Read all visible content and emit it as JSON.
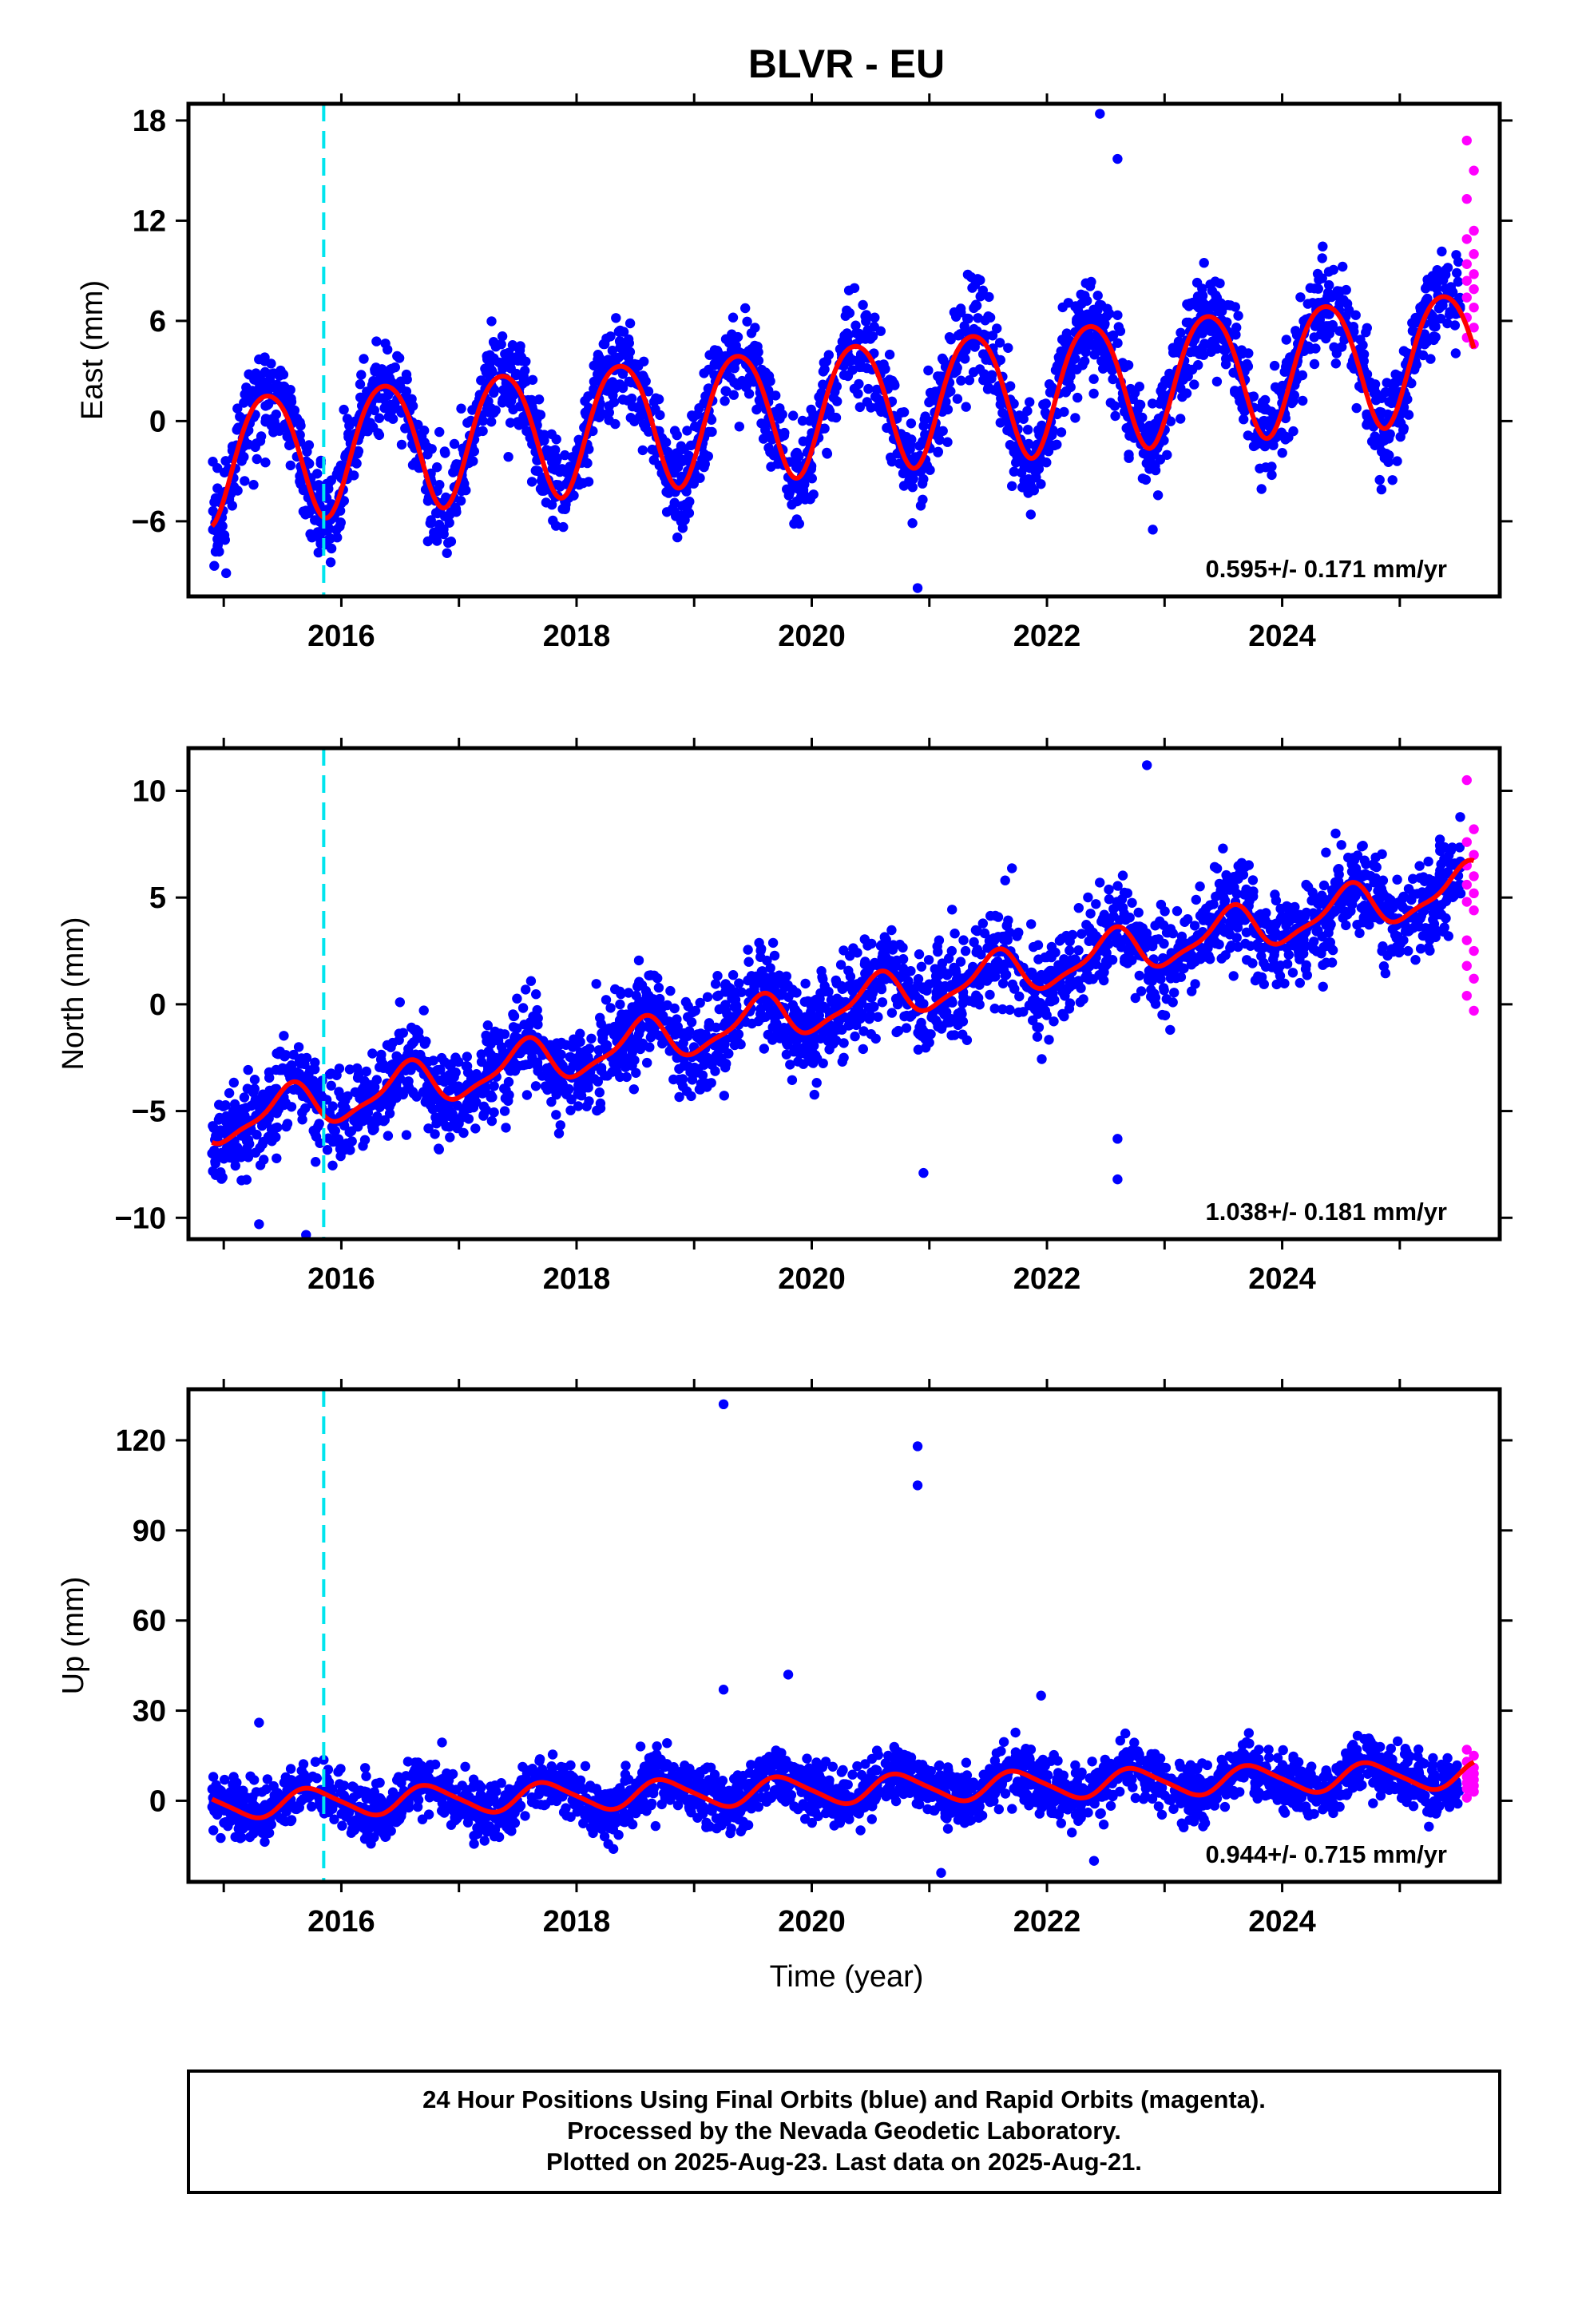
{
  "title": "BLVR - EU",
  "caption": {
    "line1": "24 Hour Positions Using Final Orbits (blue) and Rapid Orbits (magenta).",
    "line2": "Processed by the Nevada Geodetic Laboratory.",
    "line3": "Plotted on 2025-Aug-23. Last data on 2025-Aug-21."
  },
  "colors": {
    "final": "#0000ff",
    "rapid": "#ff00ff",
    "model": "#ff0000",
    "event": "#00e5ee"
  },
  "chart_data": [
    {
      "type": "scatter",
      "ylabel": "East (mm)",
      "xlabel": "",
      "xlim": [
        2014.7,
        2025.85
      ],
      "ylim": [
        -10.5,
        19
      ],
      "xticks": [
        "2016",
        "2018",
        "2020",
        "2022",
        "2024"
      ],
      "yticks": [
        "-6",
        "0",
        "6",
        "12",
        "18"
      ],
      "rate_label": "0.595+/- 0.171 mm/yr",
      "event_line_x": 2015.85,
      "model": {
        "offset": -2.3,
        "trend": 0.595,
        "annual_amp": 3.8,
        "annual_phase": 0.12,
        "semiannual_amp": 0.4
      },
      "series": [
        {
          "name": "Final Orbits",
          "color": "blue",
          "x_range": [
            2014.9,
            2025.52
          ],
          "scatter_sd": 1.4
        },
        {
          "name": "Rapid Orbits",
          "color": "magenta",
          "x_range": [
            2025.53,
            2025.63
          ],
          "y_values": [
            16.8,
            15.0,
            13.3,
            11.4,
            10.9,
            10.0,
            9.4,
            8.8,
            8.4,
            7.9,
            7.4,
            6.8,
            6.2,
            5.6,
            5.0,
            4.6
          ]
        }
      ],
      "outliers": [
        {
          "x": 2022.45,
          "y": 18.4
        },
        {
          "x": 2022.6,
          "y": 15.7
        },
        {
          "x": 2020.9,
          "y": -10.0
        },
        {
          "x": 2022.9,
          "y": -6.5
        }
      ]
    },
    {
      "type": "scatter",
      "ylabel": "North (mm)",
      "xlabel": "",
      "xlim": [
        2014.7,
        2025.85
      ],
      "ylim": [
        -11,
        12
      ],
      "xticks": [
        "2016",
        "2018",
        "2020",
        "2022",
        "2024"
      ],
      "yticks": [
        "-10",
        "-5",
        "0",
        "5",
        "10"
      ],
      "rate_label": "1.038+/- 0.181 mm/yr",
      "event_line_x": 2015.85,
      "model": {
        "offset": -5.8,
        "trend": 1.038,
        "annual_amp": 1.0,
        "annual_phase": 0.3,
        "semiannual_amp": 0.3
      },
      "series": [
        {
          "name": "Final Orbits",
          "color": "blue",
          "x_range": [
            2014.9,
            2025.52
          ],
          "scatter_sd": 1.1
        },
        {
          "name": "Rapid Orbits",
          "color": "magenta",
          "x_range": [
            2025.53,
            2025.63
          ],
          "y_values": [
            10.5,
            8.2,
            7.6,
            7.0,
            6.5,
            6.0,
            5.6,
            5.2,
            4.8,
            4.4,
            3.0,
            2.5,
            1.8,
            1.2,
            0.4,
            -0.3
          ]
        }
      ],
      "outliers": [
        {
          "x": 2022.85,
          "y": 11.2
        },
        {
          "x": 2020.95,
          "y": -7.9
        },
        {
          "x": 2022.6,
          "y": -6.3
        },
        {
          "x": 2022.6,
          "y": -8.2
        },
        {
          "x": 2015.3,
          "y": -10.3
        },
        {
          "x": 2015.7,
          "y": -10.8
        }
      ]
    },
    {
      "type": "scatter",
      "ylabel": "Up (mm)",
      "xlabel": "Time (year)",
      "xlim": [
        2014.7,
        2025.85
      ],
      "ylim": [
        -27,
        137
      ],
      "xticks": [
        "2016",
        "2018",
        "2020",
        "2022",
        "2024"
      ],
      "yticks": [
        "0",
        "30",
        "60",
        "90",
        "120"
      ],
      "rate_label": "0.944+/- 0.715 mm/yr",
      "event_line_x": 2015.85,
      "model": {
        "offset": -1.5,
        "trend": 0.944,
        "annual_amp": 4.5,
        "annual_phase": 0.5,
        "semiannual_amp": 0.8
      },
      "series": [
        {
          "name": "Final Orbits",
          "color": "blue",
          "x_range": [
            2014.9,
            2025.52
          ],
          "scatter_sd": 4.5
        },
        {
          "name": "Rapid Orbits",
          "color": "magenta",
          "x_range": [
            2025.53,
            2025.63
          ],
          "y_values": [
            17,
            15,
            13,
            11,
            10,
            9,
            8,
            7,
            6,
            5,
            4,
            3,
            1
          ]
        }
      ],
      "outliers": [
        {
          "x": 2019.25,
          "y": 132
        },
        {
          "x": 2020.9,
          "y": 118
        },
        {
          "x": 2020.9,
          "y": 105
        },
        {
          "x": 2019.25,
          "y": 37
        },
        {
          "x": 2019.8,
          "y": 42
        },
        {
          "x": 2021.95,
          "y": 35
        },
        {
          "x": 2015.3,
          "y": 26
        },
        {
          "x": 2021.1,
          "y": -24
        },
        {
          "x": 2022.4,
          "y": -20
        }
      ]
    }
  ]
}
